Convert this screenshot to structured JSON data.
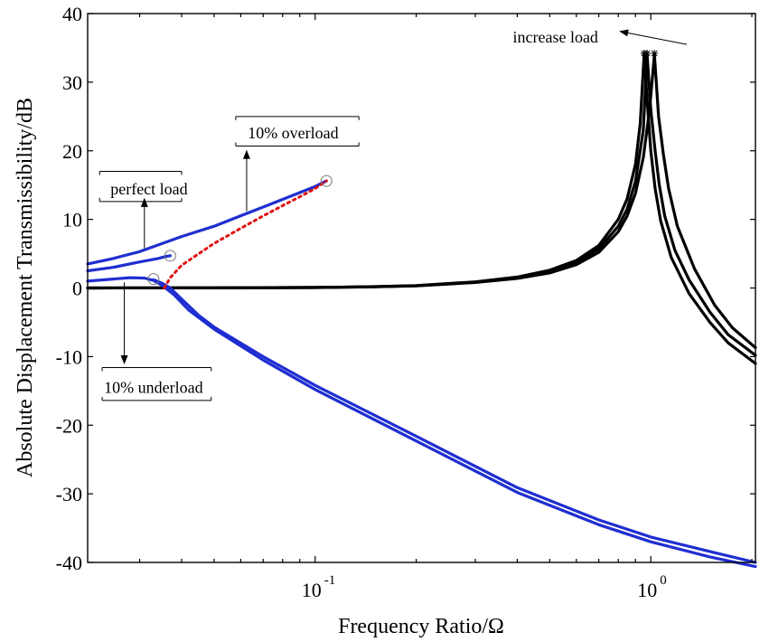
{
  "chart_data": {
    "type": "line",
    "xscale": "log",
    "xlim": [
      0.021,
      2.05
    ],
    "ylim": [
      -40,
      40
    ],
    "xlabel": "Frequency Ratio/Ω",
    "ylabel": "Absolute Displacement Transmissibility/dB",
    "yticks": [
      "-40",
      "-30",
      "-20",
      "-10",
      "0",
      "10",
      "20",
      "30",
      "40"
    ],
    "xticks": [
      {
        "base": "10",
        "exp": "-1",
        "value": 0.1
      },
      {
        "base": "10",
        "exp": "0",
        "value": 1
      }
    ],
    "grid": false,
    "legend": "none",
    "colors": {
      "passive": "#000000",
      "controlled": "#1f2ed1",
      "jump": "#e01010"
    },
    "series": [
      {
        "group": "passive",
        "x": [
          0.021,
          0.05,
          0.1,
          0.15,
          0.2,
          0.3,
          0.4,
          0.5,
          0.6,
          0.7,
          0.8,
          0.85,
          0.9,
          0.93,
          0.955,
          0.98,
          1.0,
          1.03,
          1.07,
          1.15,
          1.3,
          1.5,
          1.7,
          2.05
        ],
        "y": [
          0,
          0.02,
          0.08,
          0.2,
          0.35,
          0.9,
          1.6,
          2.6,
          4.0,
          6.2,
          10,
          13,
          18,
          24,
          34,
          26,
          20,
          14.5,
          9.8,
          4.5,
          -0.8,
          -5,
          -8,
          -11
        ]
      },
      {
        "group": "passive",
        "x": [
          0.021,
          0.05,
          0.1,
          0.15,
          0.2,
          0.3,
          0.4,
          0.5,
          0.6,
          0.7,
          0.8,
          0.85,
          0.9,
          0.95,
          0.975,
          1.0,
          1.03,
          1.06,
          1.1,
          1.18,
          1.3,
          1.5,
          1.7,
          2.05
        ],
        "y": [
          0,
          0.02,
          0.07,
          0.19,
          0.33,
          0.85,
          1.5,
          2.4,
          3.7,
          5.7,
          9.0,
          11.5,
          15.5,
          23,
          34,
          26,
          20,
          15,
          10.5,
          5.5,
          1.2,
          -3.5,
          -6.8,
          -9.8
        ]
      },
      {
        "group": "passive",
        "x": [
          0.021,
          0.05,
          0.1,
          0.15,
          0.2,
          0.3,
          0.4,
          0.5,
          0.6,
          0.7,
          0.8,
          0.85,
          0.9,
          0.95,
          0.98,
          1.0,
          1.025,
          1.055,
          1.09,
          1.13,
          1.2,
          1.35,
          1.55,
          1.75,
          2.05
        ],
        "y": [
          0,
          0.02,
          0.06,
          0.17,
          0.3,
          0.8,
          1.4,
          2.2,
          3.4,
          5.2,
          8.2,
          10.5,
          13.8,
          19,
          24,
          28,
          34,
          25,
          19.5,
          14.5,
          9,
          2.8,
          -2.5,
          -5.8,
          -8.7
        ]
      },
      {
        "group": "controlled",
        "x": [
          0.021,
          0.025,
          0.03,
          0.04,
          0.05,
          0.07,
          0.1,
          0.108
        ],
        "y": [
          3.5,
          4.3,
          5.3,
          7.5,
          9.0,
          11.8,
          14.8,
          15.6
        ]
      },
      {
        "group": "controlled",
        "x": [
          0.021,
          0.025,
          0.03,
          0.034,
          0.036,
          0.037
        ],
        "y": [
          2.5,
          3.0,
          3.8,
          4.3,
          4.6,
          4.7
        ]
      },
      {
        "group": "controlled",
        "x": [
          0.021,
          0.025,
          0.028,
          0.031,
          0.033,
          0.035,
          0.038,
          0.042,
          0.05,
          0.07,
          0.1,
          0.2,
          0.4,
          0.7,
          1.0,
          1.5,
          2.05
        ],
        "y": [
          1.0,
          1.3,
          1.5,
          1.45,
          1.1,
          0.4,
          -1.0,
          -3.2,
          -6.0,
          -10.5,
          -14.8,
          -22.3,
          -29.8,
          -34.5,
          -37.0,
          -39.2,
          -40.6
        ]
      },
      {
        "group": "controlled",
        "x": [
          0.033,
          0.035,
          0.037,
          0.04,
          0.045,
          0.05,
          0.07,
          0.1,
          0.2,
          0.4,
          0.7,
          1.0,
          1.5,
          2.05
        ],
        "y": [
          1.2,
          0.7,
          0.0,
          -1.6,
          -4.0,
          -5.7,
          -10.0,
          -14.2,
          -21.6,
          -29.1,
          -33.8,
          -36.3,
          -38.4,
          -40.0
        ]
      },
      {
        "group": "jump",
        "x": [
          0.0355,
          0.037,
          0.04,
          0.045,
          0.05,
          0.06,
          0.07,
          0.08,
          0.09,
          0.1,
          0.108
        ],
        "y": [
          0,
          1.5,
          3.3,
          5.0,
          6.5,
          8.7,
          10.5,
          12.0,
          13.3,
          14.5,
          15.6
        ]
      }
    ],
    "markers": [
      {
        "x": 0.108,
        "y": 15.6
      },
      {
        "x": 0.037,
        "y": 4.7
      },
      {
        "x": 0.033,
        "y": 1.3
      }
    ],
    "peak_stars": [
      {
        "x": 0.955,
        "y": 34.2
      },
      {
        "x": 0.975,
        "y": 34.2
      },
      {
        "x": 1.025,
        "y": 34.2
      }
    ],
    "annotations": [
      {
        "text": "10% overload",
        "x": 0.086,
        "y": 22.6,
        "box": {
          "x0": 0.058,
          "x1": 0.135,
          "y0": 20.7,
          "y1": 25.0
        },
        "arrow": {
          "from": [
            0.0625,
            11.2
          ],
          "to": [
            0.0625,
            20.0
          ]
        }
      },
      {
        "text": "perfect load",
        "x": 0.032,
        "y": 14.4,
        "box": {
          "x0": 0.0228,
          "x1": 0.04,
          "y0": 12.6,
          "y1": 17.0
        },
        "arrow": {
          "from": [
            0.031,
            5.8
          ],
          "to": [
            0.031,
            13.0
          ]
        }
      },
      {
        "text": "10% underload",
        "x": 0.033,
        "y": -14.5,
        "box": {
          "x0": 0.0232,
          "x1": 0.049,
          "y0": -16.4,
          "y1": -11.6
        },
        "arrow": {
          "from": [
            0.027,
            0.8
          ],
          "to": [
            0.027,
            -11.0
          ]
        }
      },
      {
        "text": "increase load",
        "x": 0.52,
        "y": 36.6,
        "arrow": {
          "from": [
            1.28,
            35.5
          ],
          "to": [
            0.81,
            37.4
          ]
        }
      }
    ]
  }
}
